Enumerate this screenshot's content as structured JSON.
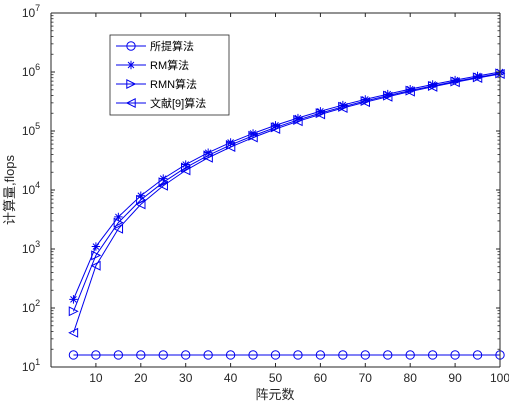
{
  "chart_data": {
    "type": "line",
    "title": "",
    "xlabel": "阵元数",
    "ylabel": "计算量,flops",
    "x_scale": "linear",
    "y_scale": "log",
    "xlim": [
      0,
      100
    ],
    "ylim": [
      10,
      10000000
    ],
    "grid": false,
    "legend_position": "top-left",
    "x_ticks": [
      10,
      20,
      30,
      40,
      50,
      60,
      70,
      80,
      90,
      100
    ],
    "y_tick_labels": [
      {
        "base": "10",
        "exp": "1",
        "value": 10
      },
      {
        "base": "10",
        "exp": "2",
        "value": 100
      },
      {
        "base": "10",
        "exp": "3",
        "value": 1000
      },
      {
        "base": "10",
        "exp": "4",
        "value": 10000
      },
      {
        "base": "10",
        "exp": "5",
        "value": 100000
      },
      {
        "base": "10",
        "exp": "6",
        "value": 1000000
      },
      {
        "base": "10",
        "exp": "7",
        "value": 10000000
      }
    ],
    "x": [
      5,
      10,
      15,
      20,
      25,
      30,
      35,
      40,
      45,
      50,
      55,
      60,
      65,
      70,
      75,
      80,
      85,
      90,
      95,
      100
    ],
    "series": [
      {
        "name": "所提算法",
        "marker": "circle",
        "color": "#0000ee",
        "values": [
          16,
          16,
          16,
          16,
          16,
          16,
          16,
          16,
          16,
          16,
          16,
          16,
          16,
          16,
          16,
          16,
          16,
          16,
          16,
          16
        ]
      },
      {
        "name": "RM算法",
        "marker": "star",
        "color": "#0000ee",
        "values": [
          140,
          1100,
          3500,
          8000,
          15600,
          27000,
          42900,
          64000,
          91000,
          125000,
          166000,
          216000,
          275000,
          343000,
          422000,
          512000,
          614000,
          729000,
          857000,
          1000000
        ]
      },
      {
        "name": "RMN算法",
        "marker": "triangle-right",
        "color": "#0000ee",
        "values": [
          88,
          780,
          2800,
          6800,
          13500,
          24000,
          38600,
          58000,
          83000,
          115000,
          154000,
          201000,
          257000,
          322000,
          397000,
          483000,
          580000,
          690000,
          812000,
          948000
        ]
      },
      {
        "name": "文献[9]算法",
        "marker": "triangle-left",
        "color": "#0000ee",
        "values": [
          38,
          520,
          2200,
          5700,
          11800,
          21500,
          35200,
          53500,
          77500,
          108000,
          146000,
          191000,
          245000,
          308000,
          381000,
          466000,
          561000,
          669000,
          790000,
          925000
        ]
      }
    ]
  }
}
